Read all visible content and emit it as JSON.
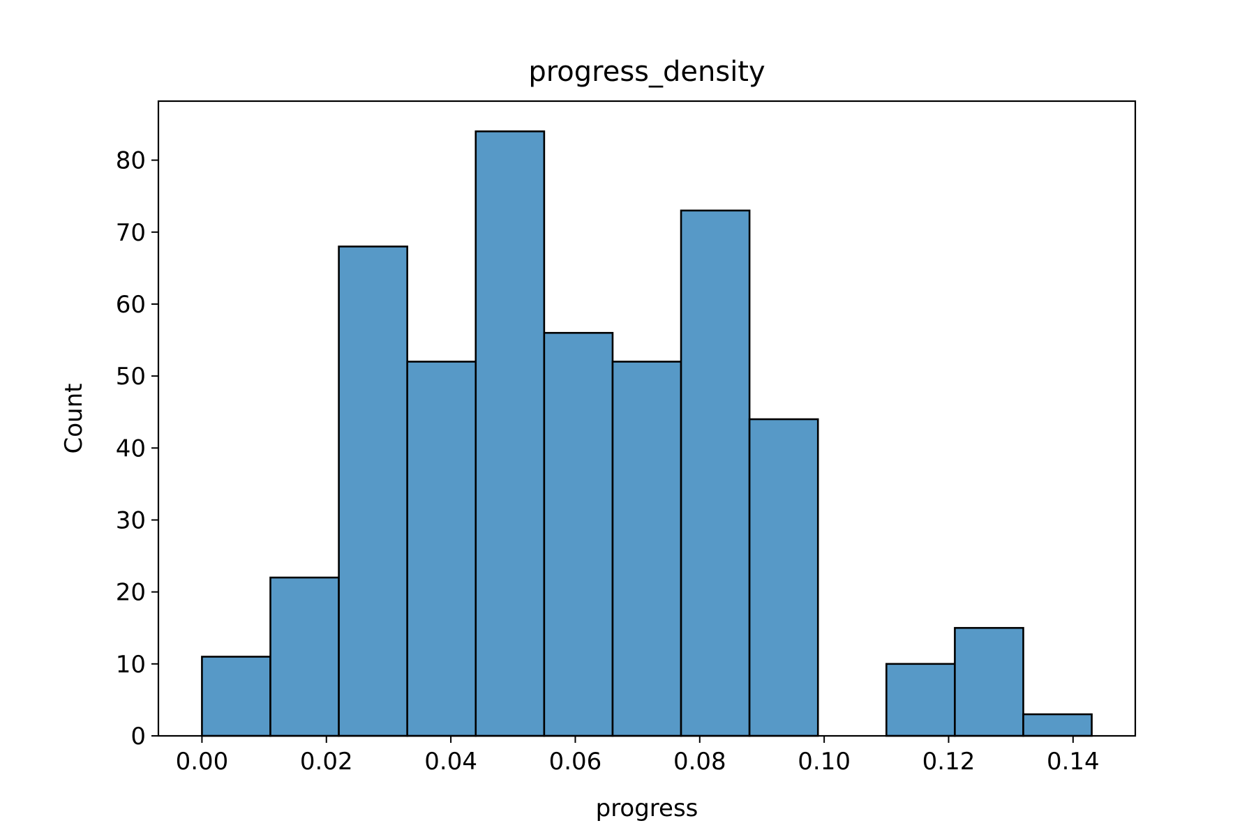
{
  "chart_data": {
    "type": "bar",
    "subtype": "histogram",
    "title": "progress_density",
    "xlabel": "progress",
    "ylabel": "Count",
    "bin_edges": [
      0.0,
      0.011,
      0.022,
      0.033,
      0.044,
      0.055,
      0.066,
      0.077,
      0.088,
      0.099,
      0.11,
      0.121,
      0.132,
      0.143
    ],
    "values": [
      11,
      22,
      68,
      52,
      84,
      56,
      52,
      73,
      44,
      0,
      10,
      15,
      3
    ],
    "xlim": [
      -0.007,
      0.15
    ],
    "ylim": [
      0,
      88.2
    ],
    "xticks": [
      0.0,
      0.02,
      0.04,
      0.06,
      0.08,
      0.1,
      0.12,
      0.14
    ],
    "xtick_labels": [
      "0.00",
      "0.02",
      "0.04",
      "0.06",
      "0.08",
      "0.10",
      "0.12",
      "0.14"
    ],
    "yticks": [
      0,
      10,
      20,
      30,
      40,
      50,
      60,
      70,
      80
    ],
    "ytick_labels": [
      "0",
      "10",
      "20",
      "30",
      "40",
      "50",
      "60",
      "70",
      "80"
    ],
    "bar_color": "#5799c7",
    "edge_color": "#000000",
    "grid": false,
    "legend": "none"
  }
}
